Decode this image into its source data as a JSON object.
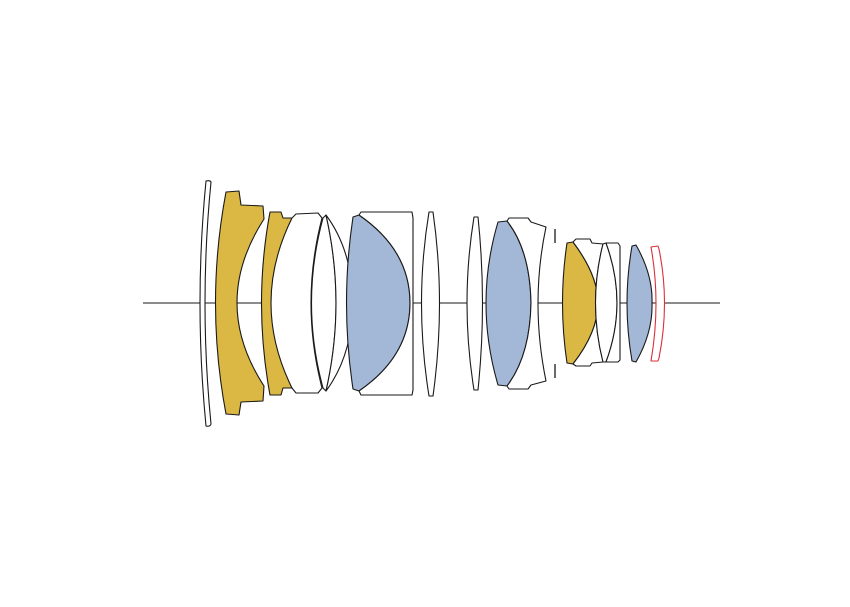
{
  "diagram": {
    "kind": "lens-construction",
    "colors": {
      "background": "#ffffff",
      "outline": "#1a1a1a",
      "plain_glass": "#ffffff",
      "aspherical": "#a3b7d6",
      "special_dispersion": "#dbb843",
      "filter_outline": "#d9303a"
    }
  }
}
